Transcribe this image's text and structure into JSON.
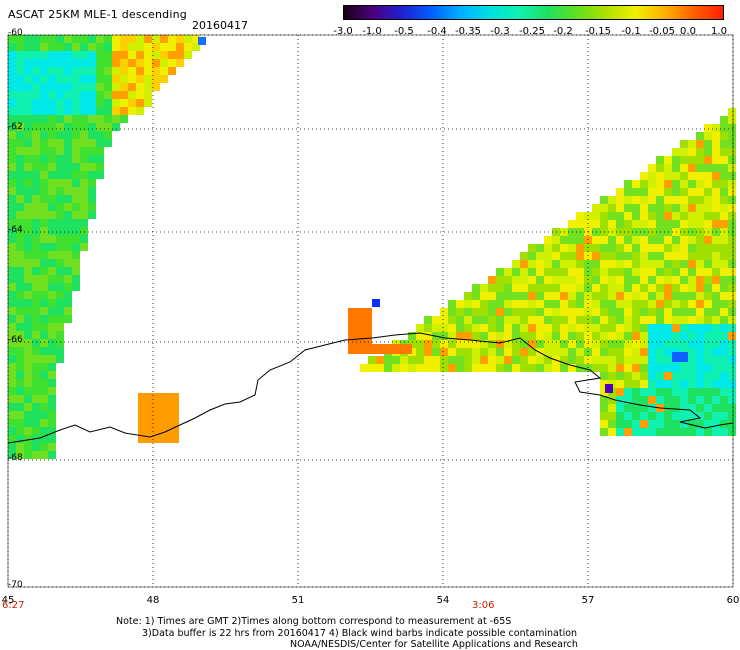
{
  "header": {
    "title": "ASCAT 25KM MLE-1 descending",
    "date": "20160417"
  },
  "legend": {
    "labels": [
      "-3.0",
      "-1.0",
      "-0.5",
      "-0.4",
      "-0.35",
      "-0.3",
      "-0.25",
      "-0.2",
      "-0.15",
      "-0.1",
      "-0.05",
      "0.0",
      "1.0"
    ],
    "colors": [
      "#1a0010",
      "#4b0080",
      "#2020d0",
      "#0060ff",
      "#00b0ff",
      "#00e0e0",
      "#10f0b0",
      "#20e060",
      "#60e020",
      "#b0e000",
      "#f0f000",
      "#ffb000",
      "#ff6000",
      "#ff2000"
    ]
  },
  "map": {
    "lat_labels": [
      "-60",
      "-62",
      "-64",
      "-66",
      "-68",
      "-70"
    ],
    "lon_labels": [
      "45",
      "48",
      "51",
      "54",
      "57",
      "60"
    ],
    "time_labels": [
      "6:27",
      "3:06"
    ]
  },
  "footer": {
    "note_line1": "Note: 1) Times are GMT 2)Times along bottom correspond to measurement at -65S",
    "note_line2": "3)Data buffer is 22 hrs from 20160417 4) Black wind barbs indicate possible contamination",
    "note_line3": "NOAA/NESDIS/Center for Satellite Applications and Research"
  }
}
